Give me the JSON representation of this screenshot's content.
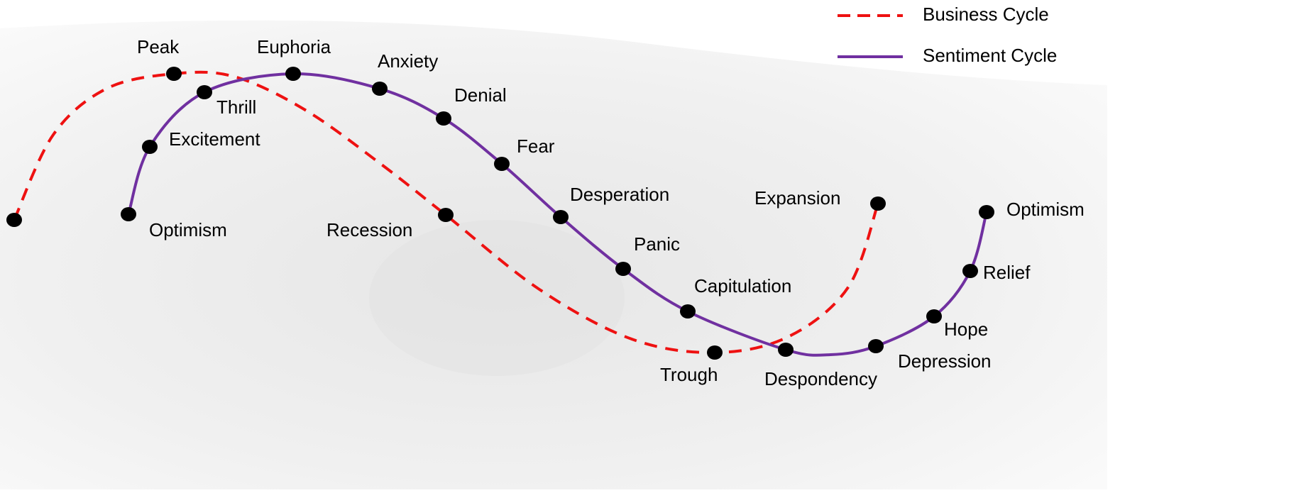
{
  "legend": [
    {
      "label": "Business Cycle"
    },
    {
      "label": "Sentiment Cycle"
    }
  ],
  "business_cycle": {
    "points": [
      "Peak",
      "Recession",
      "Trough",
      "Expansion"
    ]
  },
  "sentiment_cycle": {
    "points": [
      "Optimism",
      "Excitement",
      "Thrill",
      "Euphoria",
      "Anxiety",
      "Denial",
      "Fear",
      "Desperation",
      "Panic",
      "Capitulation",
      "Despondency",
      "Depression",
      "Hope",
      "Relief",
      "Optimism"
    ]
  }
}
